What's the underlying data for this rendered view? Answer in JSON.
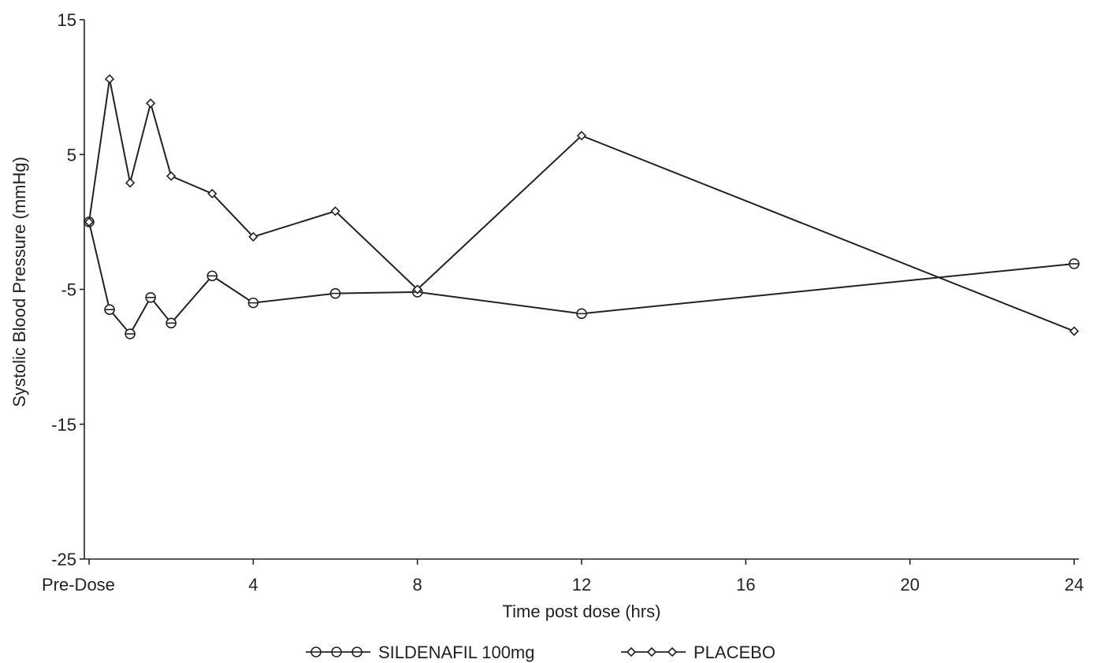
{
  "chart_data": {
    "type": "line",
    "xlabel": "Time post dose (hrs)",
    "ylabel": "Systolic Blood Pressure (mmHg)",
    "xlim": [
      0,
      24
    ],
    "ylim": [
      -25,
      15
    ],
    "x_ticks": [
      {
        "value": 0,
        "label": "Pre-Dose"
      },
      {
        "value": 4,
        "label": "4"
      },
      {
        "value": 8,
        "label": "8"
      },
      {
        "value": 12,
        "label": "12"
      },
      {
        "value": 16,
        "label": "16"
      },
      {
        "value": 20,
        "label": "20"
      },
      {
        "value": 24,
        "label": "24"
      }
    ],
    "y_ticks": [
      {
        "value": 15,
        "label": "15"
      },
      {
        "value": 5,
        "label": "5"
      },
      {
        "value": -5,
        "label": "-5"
      },
      {
        "value": -15,
        "label": "-15"
      },
      {
        "value": -25,
        "label": "-25"
      }
    ],
    "grid": false,
    "legend_position": "bottom",
    "series": [
      {
        "name": "SILDENAFIL 100mg",
        "marker": "circle",
        "color": "#222222",
        "x": [
          0,
          0.5,
          1,
          1.5,
          2,
          3,
          4,
          6,
          8,
          12,
          24
        ],
        "values": [
          0,
          -6.5,
          -8.3,
          -5.6,
          -7.5,
          -4.0,
          -6.0,
          -5.3,
          -5.2,
          -6.8,
          -3.1
        ]
      },
      {
        "name": "PLACEBO",
        "marker": "diamond",
        "color": "#222222",
        "x": [
          0,
          0.5,
          1,
          1.5,
          2,
          3,
          4,
          6,
          8,
          12,
          24
        ],
        "values": [
          0,
          10.6,
          2.9,
          8.8,
          3.4,
          2.1,
          -1.1,
          0.8,
          -5.0,
          6.4,
          -8.1
        ]
      }
    ]
  }
}
